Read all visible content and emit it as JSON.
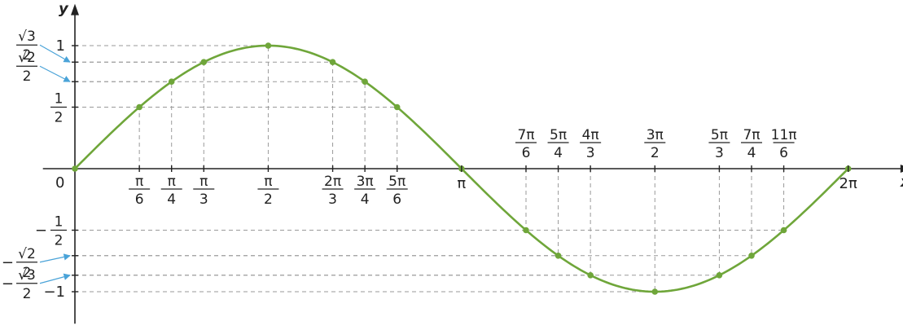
{
  "chart_data": {
    "type": "line",
    "function": "y = sin(x)",
    "xlabel": "x",
    "ylabel": "y",
    "xlim": [
      -0.26,
      6.8
    ],
    "ylim": [
      -1.26,
      1.34
    ],
    "origin_label": "0",
    "curve_color": "#6fa63a",
    "point_color": "#6fa63a",
    "arrow_color": "#4aa3d8",
    "points": [
      {
        "x": 0,
        "y": 0
      },
      {
        "x": 0.5236,
        "y": 0.5
      },
      {
        "x": 0.7854,
        "y": 0.7071
      },
      {
        "x": 1.0472,
        "y": 0.866
      },
      {
        "x": 1.5708,
        "y": 1
      },
      {
        "x": 2.0944,
        "y": 0.866
      },
      {
        "x": 2.3562,
        "y": 0.7071
      },
      {
        "x": 2.618,
        "y": 0.5
      },
      {
        "x": 3.1416,
        "y": 0
      },
      {
        "x": 3.6652,
        "y": -0.5
      },
      {
        "x": 3.927,
        "y": -0.7071
      },
      {
        "x": 4.1888,
        "y": -0.866
      },
      {
        "x": 4.7124,
        "y": -1
      },
      {
        "x": 5.236,
        "y": -0.866
      },
      {
        "x": 5.4978,
        "y": -0.7071
      },
      {
        "x": 5.7596,
        "y": -0.5
      },
      {
        "x": 6.2832,
        "y": 0
      }
    ],
    "x_ticks": [
      {
        "value": 0.5236,
        "num": "π",
        "den": "6"
      },
      {
        "value": 0.7854,
        "num": "π",
        "den": "4"
      },
      {
        "value": 1.0472,
        "num": "π",
        "den": "3"
      },
      {
        "value": 1.5708,
        "num": "π",
        "den": "2"
      },
      {
        "value": 2.0944,
        "num": "2π",
        "den": "3"
      },
      {
        "value": 2.3562,
        "num": "3π",
        "den": "4"
      },
      {
        "value": 2.618,
        "num": "5π",
        "den": "6"
      },
      {
        "value": 3.1416,
        "text": "π"
      },
      {
        "value": 3.6652,
        "num": "7π",
        "den": "6"
      },
      {
        "value": 3.927,
        "num": "5π",
        "den": "4"
      },
      {
        "value": 4.1888,
        "num": "4π",
        "den": "3"
      },
      {
        "value": 4.7124,
        "num": "3π",
        "den": "2"
      },
      {
        "value": 5.236,
        "num": "5π",
        "den": "3"
      },
      {
        "value": 5.4978,
        "num": "7π",
        "den": "4"
      },
      {
        "value": 5.7596,
        "num": "11π",
        "den": "6"
      },
      {
        "value": 6.2832,
        "text": "2π"
      }
    ],
    "y_ticks": [
      {
        "value": 1,
        "text": "1"
      },
      {
        "value": 0.866,
        "sign": "",
        "num": "√3",
        "den": "2",
        "arrow": true
      },
      {
        "value": 0.7071,
        "sign": "",
        "num": "√2",
        "den": "2",
        "arrow": true
      },
      {
        "value": 0.5,
        "sign": "",
        "num": "1",
        "den": "2"
      },
      {
        "value": -0.5,
        "sign": "−",
        "num": "1",
        "den": "2"
      },
      {
        "value": -0.7071,
        "sign": "−",
        "num": "√2",
        "den": "2",
        "arrow": true
      },
      {
        "value": -0.866,
        "sign": "−",
        "num": "√3",
        "den": "2",
        "arrow": true
      },
      {
        "value": -1,
        "text": "−1"
      }
    ]
  }
}
